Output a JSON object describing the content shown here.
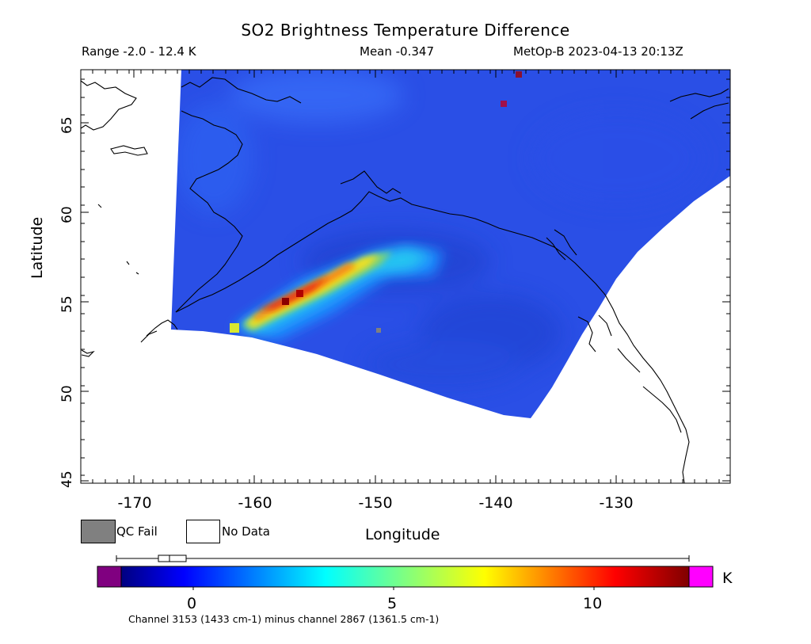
{
  "header": {
    "title": "SO2 Brightness Temperature Difference",
    "range": "Range -2.0 - 12.4 K",
    "mean": "Mean -0.347",
    "satellite": "MetOp-B 2023-04-13 20:13Z"
  },
  "axes": {
    "xlabel": "Longitude",
    "ylabel": "Latitude",
    "x_range": [
      -175,
      -121
    ],
    "y_range": [
      44.7,
      67.8
    ],
    "x_ticks": [
      -170,
      -160,
      -150,
      -140,
      -130
    ],
    "y_ticks": [
      45,
      50,
      55,
      60,
      65
    ]
  },
  "legend": {
    "qc_fail": "QC Fail",
    "no_data": "No Data",
    "qc_fail_color": "#808080",
    "no_data_color": "#ffffff"
  },
  "colorbar": {
    "unit": "K",
    "range": [
      -2.2,
      12.4
    ],
    "ticks": [
      "0",
      "5",
      "10"
    ],
    "tick_values": [
      0,
      5,
      10
    ],
    "under_color": "#800080",
    "over_color": "#ff00ff",
    "channel_text": "Channel 3153 (1433 cm-1) minus channel 2867 (1361.5 cm-1)"
  },
  "plume": {
    "peak_value": 12.4,
    "trend": "plume extends northeast from about -162, 53.7 to about -146, 57.9"
  }
}
